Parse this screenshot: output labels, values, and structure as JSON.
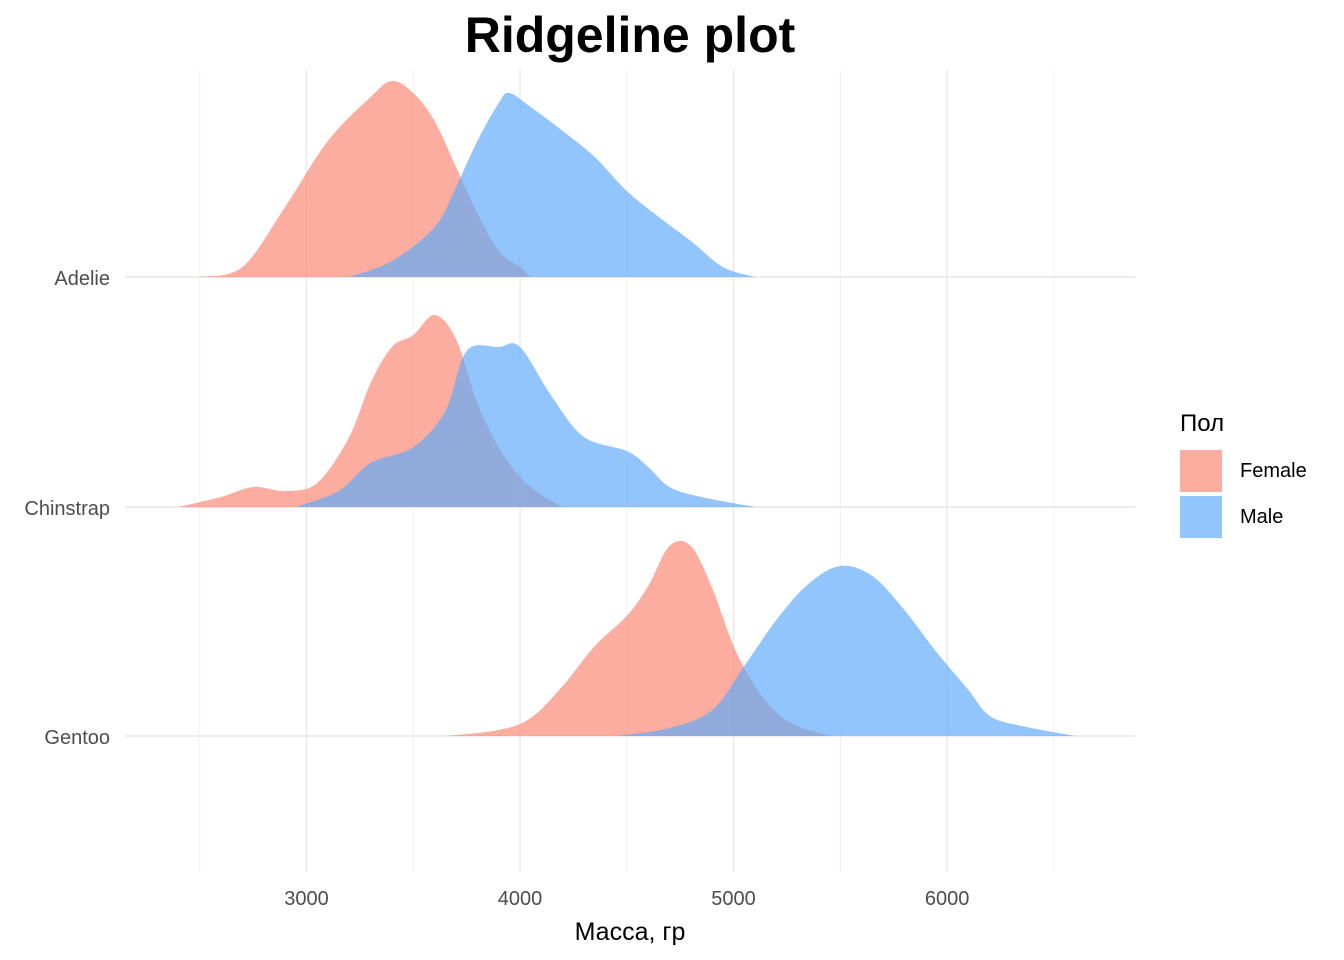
{
  "title": "Ridgeline plot",
  "chart_data": {
    "type": "area",
    "title": "Ridgeline plot",
    "xlabel": "Масса, гр",
    "ylabel": "",
    "xlim": [
      2150,
      6880
    ],
    "x_ticks": [
      3000,
      4000,
      5000,
      6000
    ],
    "grid": true,
    "categories": [
      "Adelie",
      "Chinstrap",
      "Gentoo"
    ],
    "legend": {
      "title": "Пол",
      "position": "right",
      "entries": [
        {
          "name": "Female",
          "color": "#fb8672"
        },
        {
          "name": "Male",
          "color": "#5eaaf9"
        }
      ]
    },
    "series": [
      {
        "name": "Female",
        "color": "#fb8672",
        "groups": [
          {
            "category": "Adelie",
            "points": [
              [
                2500,
                0
              ],
              [
                2700,
                0.05
              ],
              [
                2900,
                0.35
              ],
              [
                3100,
                0.68
              ],
              [
                3300,
                0.9
              ],
              [
                3400,
                0.98
              ],
              [
                3500,
                0.92
              ],
              [
                3600,
                0.78
              ],
              [
                3700,
                0.55
              ],
              [
                3800,
                0.32
              ],
              [
                3900,
                0.13
              ],
              [
                4000,
                0.05
              ],
              [
                4050,
                0
              ]
            ]
          },
          {
            "category": "Chinstrap",
            "points": [
              [
                2400,
                0
              ],
              [
                2600,
                0.05
              ],
              [
                2750,
                0.1
              ],
              [
                2900,
                0.08
              ],
              [
                3050,
                0.12
              ],
              [
                3200,
                0.35
              ],
              [
                3300,
                0.62
              ],
              [
                3400,
                0.8
              ],
              [
                3500,
                0.86
              ],
              [
                3600,
                0.96
              ],
              [
                3700,
                0.84
              ],
              [
                3800,
                0.52
              ],
              [
                3900,
                0.3
              ],
              [
                4000,
                0.15
              ],
              [
                4100,
                0.06
              ],
              [
                4200,
                0
              ]
            ]
          },
          {
            "category": "Gentoo",
            "points": [
              [
                3650,
                0
              ],
              [
                3900,
                0.03
              ],
              [
                4050,
                0.09
              ],
              [
                4200,
                0.25
              ],
              [
                4350,
                0.45
              ],
              [
                4500,
                0.6
              ],
              [
                4600,
                0.75
              ],
              [
                4700,
                0.95
              ],
              [
                4800,
                0.95
              ],
              [
                4900,
                0.74
              ],
              [
                5000,
                0.45
              ],
              [
                5100,
                0.25
              ],
              [
                5200,
                0.12
              ],
              [
                5300,
                0.05
              ],
              [
                5450,
                0
              ]
            ]
          }
        ]
      },
      {
        "name": "Male",
        "color": "#5eaaf9",
        "groups": [
          {
            "category": "Adelie",
            "points": [
              [
                3200,
                0
              ],
              [
                3400,
                0.08
              ],
              [
                3600,
                0.25
              ],
              [
                3700,
                0.45
              ],
              [
                3800,
                0.68
              ],
              [
                3900,
                0.87
              ],
              [
                3950,
                0.92
              ],
              [
                4050,
                0.85
              ],
              [
                4200,
                0.73
              ],
              [
                4350,
                0.6
              ],
              [
                4500,
                0.43
              ],
              [
                4650,
                0.3
              ],
              [
                4800,
                0.18
              ],
              [
                4950,
                0.05
              ],
              [
                5100,
                0
              ]
            ]
          },
          {
            "category": "Chinstrap",
            "points": [
              [
                2950,
                0
              ],
              [
                3150,
                0.08
              ],
              [
                3300,
                0.22
              ],
              [
                3500,
                0.3
              ],
              [
                3650,
                0.48
              ],
              [
                3750,
                0.78
              ],
              [
                3900,
                0.8
              ],
              [
                4000,
                0.8
              ],
              [
                4150,
                0.55
              ],
              [
                4300,
                0.35
              ],
              [
                4500,
                0.28
              ],
              [
                4600,
                0.2
              ],
              [
                4700,
                0.1
              ],
              [
                4850,
                0.05
              ],
              [
                5100,
                0
              ]
            ]
          },
          {
            "category": "Gentoo",
            "points": [
              [
                4450,
                0
              ],
              [
                4700,
                0.04
              ],
              [
                4900,
                0.13
              ],
              [
                5050,
                0.35
              ],
              [
                5200,
                0.58
              ],
              [
                5350,
                0.76
              ],
              [
                5500,
                0.85
              ],
              [
                5650,
                0.8
              ],
              [
                5800,
                0.63
              ],
              [
                5950,
                0.42
              ],
              [
                6100,
                0.23
              ],
              [
                6200,
                0.1
              ],
              [
                6350,
                0.05
              ],
              [
                6600,
                0
              ]
            ]
          }
        ]
      }
    ]
  }
}
